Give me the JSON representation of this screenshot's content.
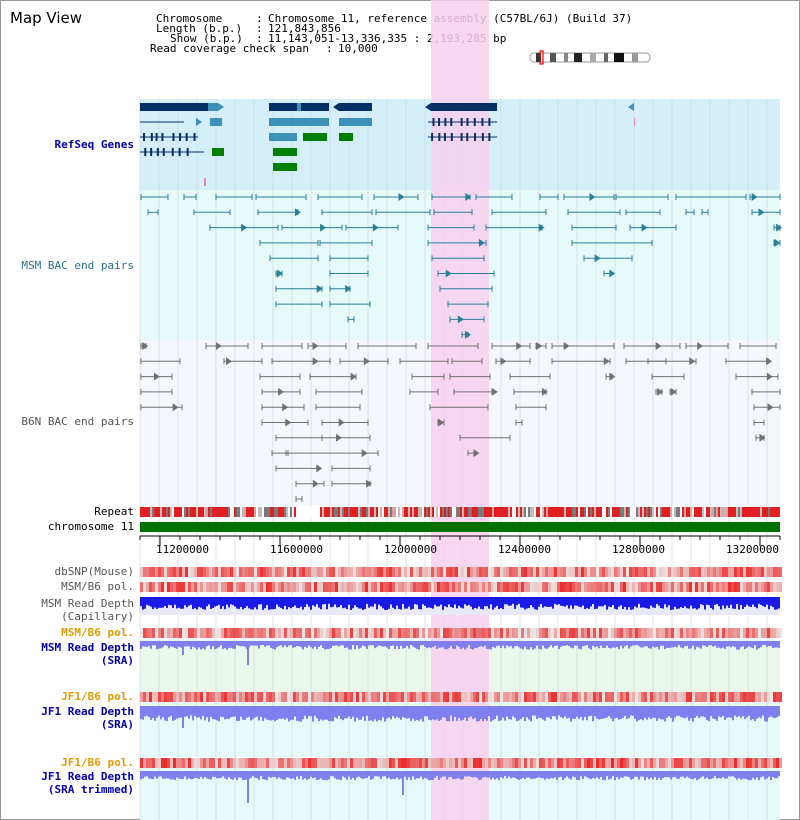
{
  "title": "Map View",
  "header": {
    "chromosome_label": "Chromosome",
    "chromosome_value": "Chromosome 11, reference assembly (C57BL/6J) (Build 37)",
    "length_label": "Length (b.p.)",
    "length_value": "121,843,856",
    "show_label": "Show (b.p.)",
    "show_value": "11,143,051-13,336,335 : 2,193,285 bp",
    "span_label": "Read coverage check span",
    "span_value": "10,000"
  },
  "tracks": {
    "refseq": "RefSeq Genes",
    "msm_bac": "MSM BAC end pairs",
    "b6n_bac": "B6N BAC end pairs",
    "repeat": "Repeat",
    "chromosome": "chromosome 11",
    "dbsnp": "dbSNP(Mouse)",
    "msm_b6_pol_1": "MSM/B6 pol.",
    "msm_depth_cap_1": "MSM Read Depth",
    "msm_depth_cap_2": "(Capillary)",
    "msm_b6_pol_2": "MSM/B6 pol.",
    "msm_depth_sra_1": "MSM Read Depth",
    "msm_depth_sra_2": "(SRA)",
    "jf1_b6_pol_1": "JF1/B6 pol.",
    "jf1_depth_sra_1": "JF1 Read Depth",
    "jf1_depth_sra_2": "(SRA)",
    "jf1_b6_pol_2": "JF1/B6 pol.",
    "jf1_depth_trim_1": "JF1 Read Depth",
    "jf1_depth_trim_2": "(SRA trimmed)"
  },
  "axis": {
    "ticks": [
      "11200000",
      "11600000",
      "12000000",
      "12400000",
      "12800000",
      "13200000"
    ]
  },
  "colors": {
    "refseq_bg": "#d4eefa",
    "msm_bg": "#e6fafa",
    "b6n_bg": "#f4f8fc",
    "highlight": "#f7d0ee",
    "chrom_green": "#007000",
    "depth_blue": "#1a1ae6",
    "depth_lavender": "#7f7ff0",
    "pol_red": "#e03030",
    "gene_navy": "#062f66",
    "gene_teal": "#3d90b8",
    "gene_green": "#008000",
    "bac_teal": "#2a7f98",
    "bac_gray": "#707070"
  }
}
